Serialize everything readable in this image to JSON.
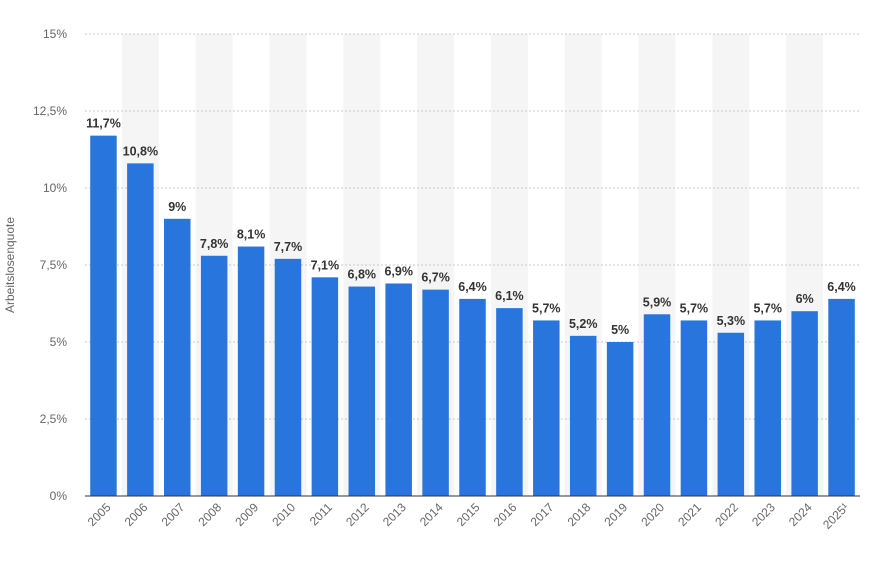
{
  "chart_data": {
    "type": "bar",
    "title": "",
    "xlabel": "",
    "ylabel": "Arbeitslosenquote",
    "ylim": [
      0,
      15
    ],
    "y_ticks": [
      0,
      2.5,
      5,
      7.5,
      10,
      12.5,
      15
    ],
    "y_tick_labels": [
      "0%",
      "2,5%",
      "5%",
      "7,5%",
      "10%",
      "12,5%",
      "15%"
    ],
    "categories": [
      "2005",
      "2006",
      "2007",
      "2008",
      "2009",
      "2010",
      "2011",
      "2012",
      "2013",
      "2014",
      "2015",
      "2016",
      "2017",
      "2018",
      "2019",
      "2020",
      "2021",
      "2022",
      "2023",
      "2024",
      "2025¹"
    ],
    "values": [
      11.7,
      10.8,
      9,
      7.8,
      8.1,
      7.7,
      7.1,
      6.8,
      6.9,
      6.7,
      6.4,
      6.1,
      5.7,
      5.2,
      5,
      5.9,
      5.7,
      5.3,
      5.7,
      6,
      6.4
    ],
    "value_labels": [
      "11,7%",
      "10,8%",
      "9%",
      "7,8%",
      "8,1%",
      "7,7%",
      "7,1%",
      "6,8%",
      "6,9%",
      "6,7%",
      "6,4%",
      "6,1%",
      "5,7%",
      "5,2%",
      "5%",
      "5,9%",
      "5,7%",
      "5,3%",
      "5,7%",
      "6%",
      "6,4%"
    ],
    "grid": true,
    "legend": "none",
    "colors": {
      "bar": "#2876dd",
      "band": "#f5f5f5",
      "grid": "#c9c9c9",
      "axis": "#333333",
      "label": "#333333",
      "tick": "#666666"
    }
  }
}
